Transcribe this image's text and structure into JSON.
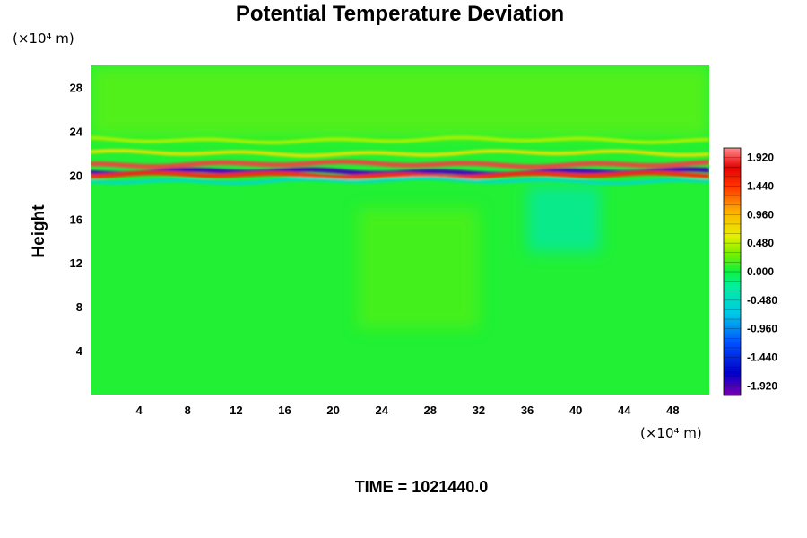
{
  "chart_data": {
    "type": "heatmap",
    "title": "Potential Temperature Deviation",
    "ylabel": "Height",
    "xlabel": "",
    "x_unit": "(×10⁴ m)",
    "y_unit": "(×10⁴ m)",
    "xlim": [
      0,
      51
    ],
    "ylim": [
      0,
      30
    ],
    "x_ticks": [
      4,
      8,
      12,
      16,
      20,
      24,
      28,
      32,
      36,
      40,
      44,
      48
    ],
    "y_ticks": [
      4,
      8,
      12,
      16,
      20,
      24,
      28
    ],
    "colorbar": {
      "range": [
        -2.08,
        2.08
      ],
      "labels": [
        "1.920",
        "1.440",
        "0.960",
        "0.480",
        "0.000",
        "-0.480",
        "-0.960",
        "-1.440",
        "-1.920"
      ],
      "label_values": [
        1.92,
        1.44,
        0.96,
        0.48,
        0.0,
        -0.48,
        -0.96,
        -1.44,
        -1.92
      ],
      "stops": [
        {
          "value": -2.08,
          "color": "#7a00b0"
        },
        {
          "value": -1.7,
          "color": "#0000c8"
        },
        {
          "value": -1.2,
          "color": "#0050ff"
        },
        {
          "value": -0.7,
          "color": "#00c8e6"
        },
        {
          "value": -0.25,
          "color": "#00f0a0"
        },
        {
          "value": 0.0,
          "color": "#10f040"
        },
        {
          "value": 0.3,
          "color": "#78f000"
        },
        {
          "value": 0.6,
          "color": "#e6f000"
        },
        {
          "value": 1.0,
          "color": "#ffb400"
        },
        {
          "value": 1.4,
          "color": "#ff3c00"
        },
        {
          "value": 1.75,
          "color": "#e60000"
        },
        {
          "value": 2.08,
          "color": "#ff8c8c"
        }
      ]
    },
    "background_value": 0.05,
    "features": [
      {
        "kind": "band",
        "y": 21.0,
        "value": 1.9
      },
      {
        "kind": "band",
        "y": 20.3,
        "value": -1.9
      },
      {
        "kind": "band",
        "y": 20.0,
        "value": 1.5
      },
      {
        "kind": "band",
        "y": 22.0,
        "value": 0.7
      },
      {
        "kind": "band",
        "y": 23.2,
        "value": 0.45
      },
      {
        "kind": "band",
        "y": 19.5,
        "value": -0.5
      },
      {
        "kind": "region",
        "x": [
          0,
          51
        ],
        "y": [
          23.5,
          30
        ],
        "value": 0.25
      },
      {
        "kind": "region",
        "x": [
          36,
          42
        ],
        "y": [
          13,
          19
        ],
        "value": -0.35
      },
      {
        "kind": "region",
        "x": [
          22,
          32
        ],
        "y": [
          6,
          17
        ],
        "value": 0.2
      }
    ]
  },
  "bottom_label": "TIME = 1021440.0"
}
